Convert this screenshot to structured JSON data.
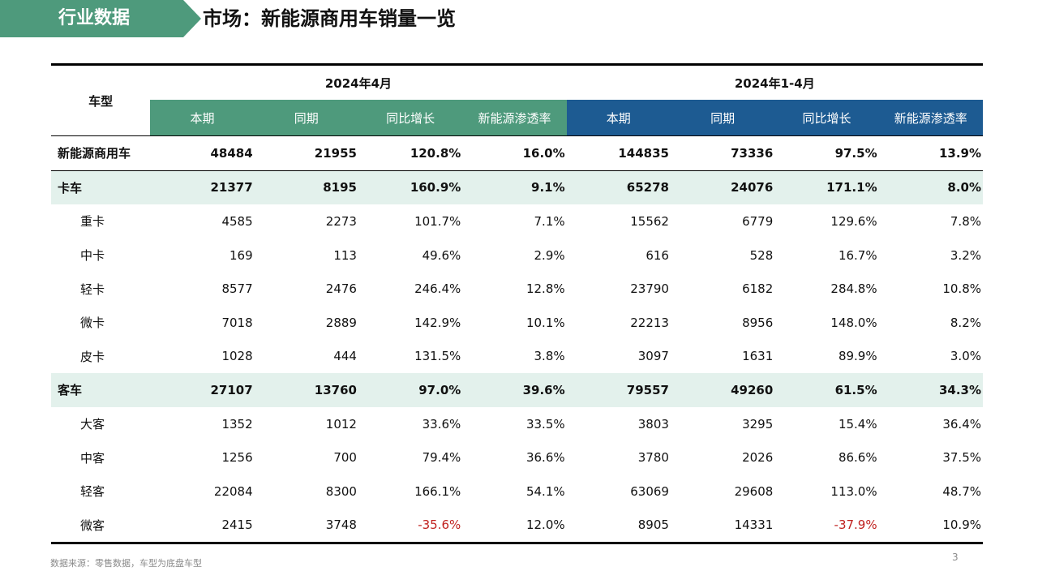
{
  "header": {
    "tag": "行业数据",
    "title": "市场：新能源商用车销量一览"
  },
  "table": {
    "model_header": "车型",
    "group_april": "2024年4月",
    "group_ytd": "2024年1-4月",
    "sub_headers": [
      "本期",
      "同期",
      "同比增长",
      "新能源渗透率"
    ],
    "rows": [
      {
        "name": "新能源商用车",
        "type": "total",
        "cells": [
          {
            "v": "48484"
          },
          {
            "v": "21955"
          },
          {
            "v": "120.8%"
          },
          {
            "v": "16.0%"
          },
          {
            "v": "144835"
          },
          {
            "v": "73336"
          },
          {
            "v": "97.5%"
          },
          {
            "v": "13.9%"
          }
        ]
      },
      {
        "name": "卡车",
        "type": "cat",
        "cells": [
          {
            "v": "21377"
          },
          {
            "v": "8195"
          },
          {
            "v": "160.9%"
          },
          {
            "v": "9.1%"
          },
          {
            "v": "65278"
          },
          {
            "v": "24076"
          },
          {
            "v": "171.1%"
          },
          {
            "v": "8.0%"
          }
        ]
      },
      {
        "name": "重卡",
        "type": "sub",
        "cells": [
          {
            "v": "4585"
          },
          {
            "v": "2273"
          },
          {
            "v": "101.7%"
          },
          {
            "v": "7.1%"
          },
          {
            "v": "15562"
          },
          {
            "v": "6779"
          },
          {
            "v": "129.6%"
          },
          {
            "v": "7.8%"
          }
        ]
      },
      {
        "name": "中卡",
        "type": "sub",
        "cells": [
          {
            "v": "169"
          },
          {
            "v": "113"
          },
          {
            "v": "49.6%"
          },
          {
            "v": "2.9%"
          },
          {
            "v": "616"
          },
          {
            "v": "528"
          },
          {
            "v": "16.7%"
          },
          {
            "v": "3.2%"
          }
        ]
      },
      {
        "name": "轻卡",
        "type": "sub",
        "cells": [
          {
            "v": "8577"
          },
          {
            "v": "2476"
          },
          {
            "v": "246.4%"
          },
          {
            "v": "12.8%"
          },
          {
            "v": "23790"
          },
          {
            "v": "6182"
          },
          {
            "v": "284.8%"
          },
          {
            "v": "10.8%"
          }
        ]
      },
      {
        "name": "微卡",
        "type": "sub",
        "cells": [
          {
            "v": "7018"
          },
          {
            "v": "2889"
          },
          {
            "v": "142.9%"
          },
          {
            "v": "10.1%"
          },
          {
            "v": "22213"
          },
          {
            "v": "8956"
          },
          {
            "v": "148.0%"
          },
          {
            "v": "8.2%"
          }
        ]
      },
      {
        "name": "皮卡",
        "type": "sub",
        "cells": [
          {
            "v": "1028"
          },
          {
            "v": "444"
          },
          {
            "v": "131.5%"
          },
          {
            "v": "3.8%"
          },
          {
            "v": "3097"
          },
          {
            "v": "1631"
          },
          {
            "v": "89.9%"
          },
          {
            "v": "3.0%"
          }
        ]
      },
      {
        "name": "客车",
        "type": "cat",
        "cells": [
          {
            "v": "27107"
          },
          {
            "v": "13760"
          },
          {
            "v": "97.0%"
          },
          {
            "v": "39.6%"
          },
          {
            "v": "79557"
          },
          {
            "v": "49260"
          },
          {
            "v": "61.5%"
          },
          {
            "v": "34.3%"
          }
        ]
      },
      {
        "name": "大客",
        "type": "sub",
        "cells": [
          {
            "v": "1352"
          },
          {
            "v": "1012"
          },
          {
            "v": "33.6%"
          },
          {
            "v": "33.5%"
          },
          {
            "v": "3803"
          },
          {
            "v": "3295"
          },
          {
            "v": "15.4%"
          },
          {
            "v": "36.4%"
          }
        ]
      },
      {
        "name": "中客",
        "type": "sub",
        "cells": [
          {
            "v": "1256"
          },
          {
            "v": "700"
          },
          {
            "v": "79.4%"
          },
          {
            "v": "36.6%"
          },
          {
            "v": "3780"
          },
          {
            "v": "2026"
          },
          {
            "v": "86.6%"
          },
          {
            "v": "37.5%"
          }
        ]
      },
      {
        "name": "轻客",
        "type": "sub",
        "cells": [
          {
            "v": "22084"
          },
          {
            "v": "8300"
          },
          {
            "v": "166.1%"
          },
          {
            "v": "54.1%"
          },
          {
            "v": "63069"
          },
          {
            "v": "29608"
          },
          {
            "v": "113.0%"
          },
          {
            "v": "48.7%"
          }
        ]
      },
      {
        "name": "微客",
        "type": "sub",
        "cells": [
          {
            "v": "2415"
          },
          {
            "v": "3748"
          },
          {
            "v": "-35.6%",
            "neg": true
          },
          {
            "v": "12.0%"
          },
          {
            "v": "8905"
          },
          {
            "v": "14331"
          },
          {
            "v": "-37.9%",
            "neg": true
          },
          {
            "v": "10.9%"
          }
        ]
      }
    ]
  },
  "footer": {
    "source": "数据来源：零售数据，车型为底盘车型",
    "page": "3"
  },
  "colors": {
    "accent_green": "#4e9a7c",
    "accent_blue": "#1d5b92",
    "category_row_bg": "#e3f1ec",
    "negative_text": "#c0211f"
  }
}
